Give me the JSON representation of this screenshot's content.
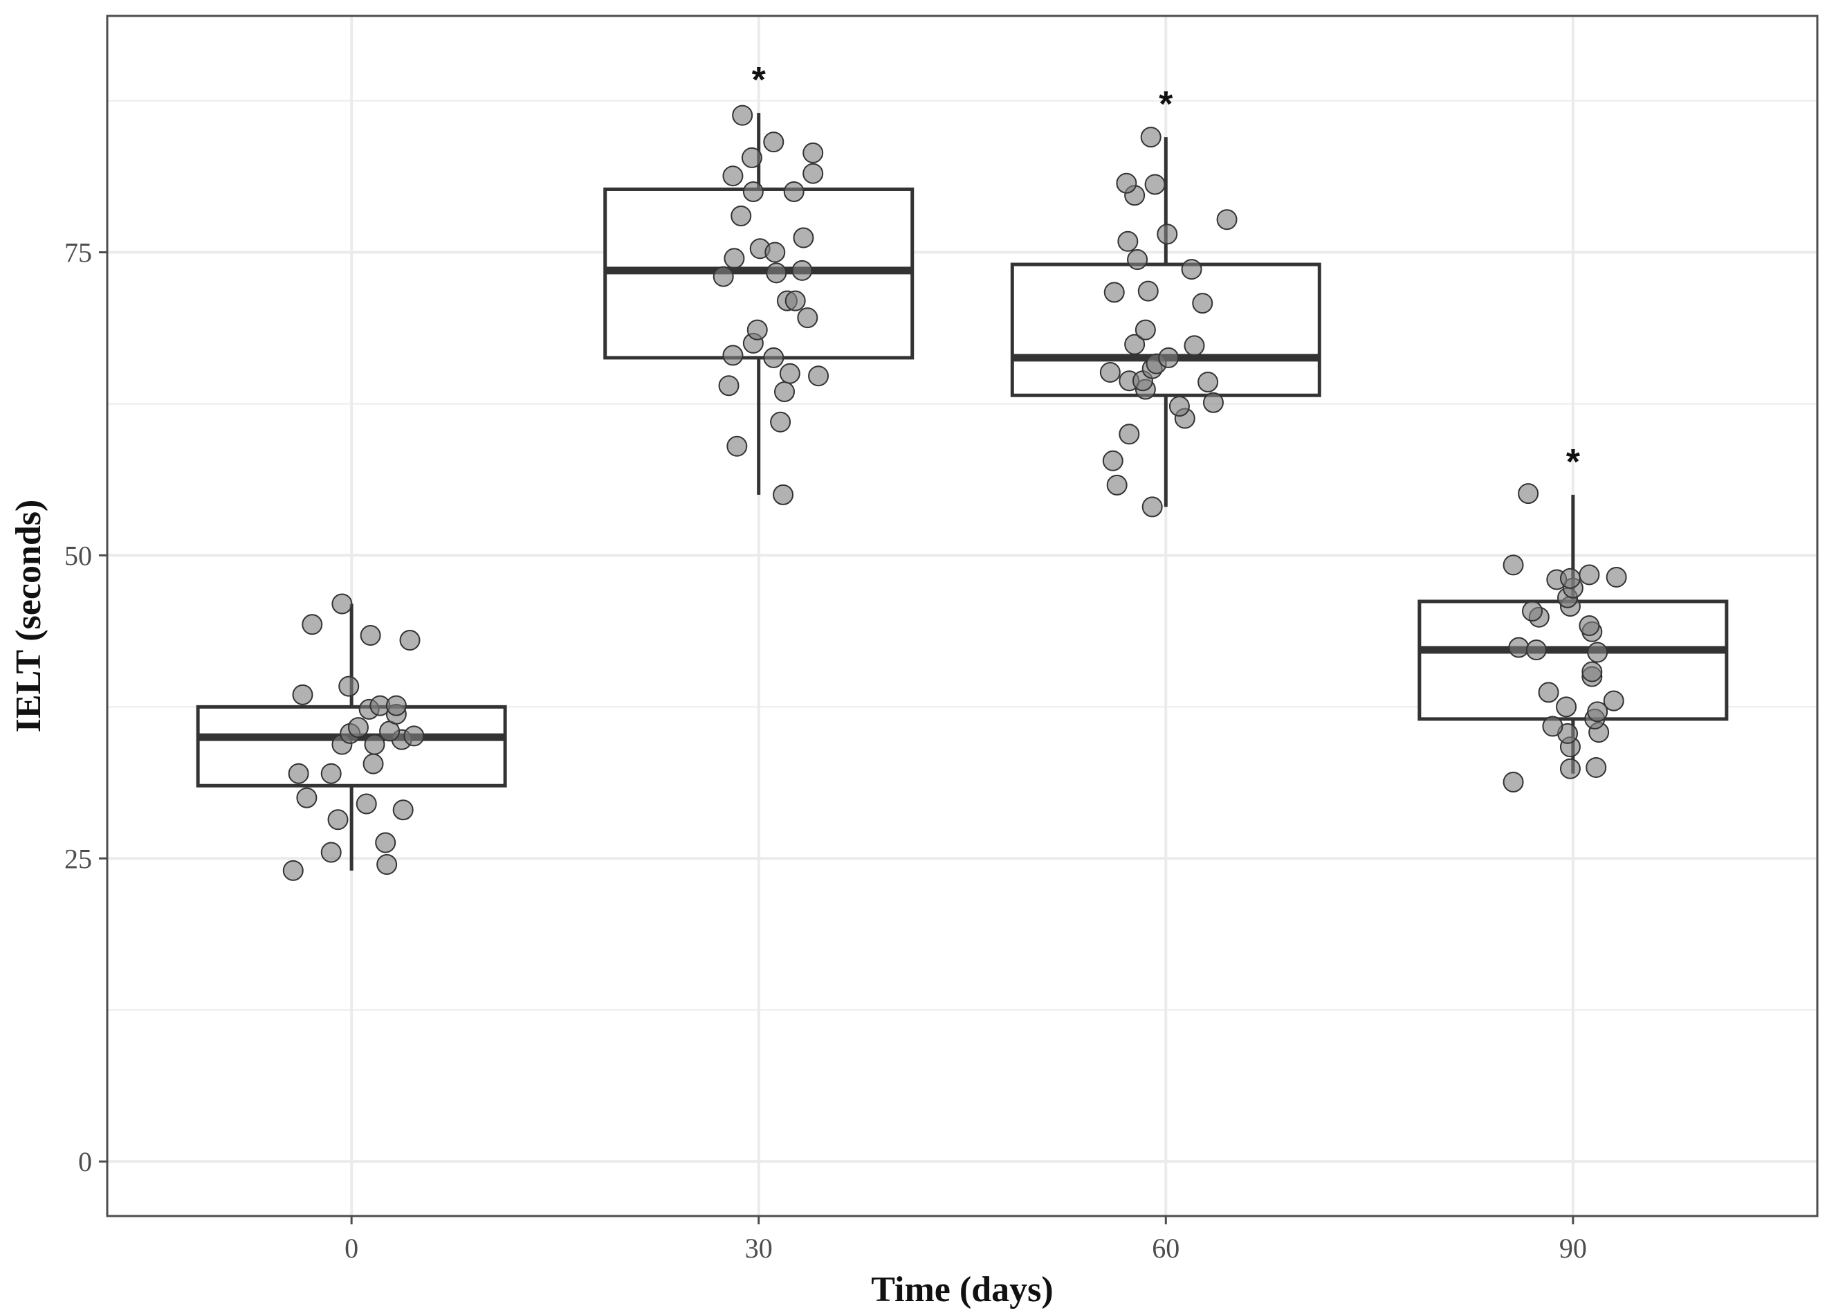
{
  "chart_data": {
    "type": "boxplot",
    "title": "",
    "xlabel": "Time (days)",
    "ylabel": "IELT (seconds)",
    "x_ticks": [
      "0",
      "30",
      "60",
      "90"
    ],
    "y_ticks": [
      "0",
      "25",
      "50",
      "75"
    ],
    "xlim": [
      -18,
      108
    ],
    "ylim": [
      -4.5,
      94.5
    ],
    "grid": true,
    "colors": {
      "background": "#ffffff",
      "panel_border": "#4d4d4d",
      "grid": "#ebebeb",
      "box_stroke": "#333333",
      "point_fill": "#7f7f7f",
      "point_stroke": "#333333"
    },
    "groups": [
      {
        "x": 0,
        "label": "0",
        "whisker_low": 24.0,
        "q1": 31.0,
        "median": 35.0,
        "q3": 37.5,
        "whisker_high": 46.0,
        "significance": "",
        "points": [
          {
            "x": -4.3,
            "y": 24.0
          },
          {
            "x": 2.6,
            "y": 24.5
          },
          {
            "x": -1.5,
            "y": 25.5
          },
          {
            "x": 2.5,
            "y": 26.3
          },
          {
            "x": -1.0,
            "y": 28.2
          },
          {
            "x": 3.8,
            "y": 29.0
          },
          {
            "x": 1.1,
            "y": 29.5
          },
          {
            "x": -3.3,
            "y": 30.0
          },
          {
            "x": -3.9,
            "y": 32.0
          },
          {
            "x": -1.5,
            "y": 32.0
          },
          {
            "x": 1.6,
            "y": 32.8
          },
          {
            "x": -0.7,
            "y": 34.4
          },
          {
            "x": 1.7,
            "y": 34.4
          },
          {
            "x": 3.7,
            "y": 34.8
          },
          {
            "x": 4.6,
            "y": 35.1
          },
          {
            "x": -0.1,
            "y": 35.3
          },
          {
            "x": 2.8,
            "y": 35.5
          },
          {
            "x": 0.5,
            "y": 35.8
          },
          {
            "x": 3.3,
            "y": 36.9
          },
          {
            "x": 1.3,
            "y": 37.3
          },
          {
            "x": 2.1,
            "y": 37.6
          },
          {
            "x": 3.3,
            "y": 37.6
          },
          {
            "x": -3.6,
            "y": 38.5
          },
          {
            "x": -0.2,
            "y": 39.2
          },
          {
            "x": 4.3,
            "y": 43.0
          },
          {
            "x": 1.4,
            "y": 43.4
          },
          {
            "x": -2.9,
            "y": 44.3
          },
          {
            "x": -0.7,
            "y": 46.0
          }
        ]
      },
      {
        "x": 30,
        "label": "30",
        "whisker_low": 55.0,
        "q1": 66.3,
        "median": 73.5,
        "q3": 80.2,
        "whisker_high": 86.5,
        "significance": "*",
        "points": [
          {
            "x": 31.8,
            "y": 55.0
          },
          {
            "x": 28.4,
            "y": 59.0
          },
          {
            "x": 31.6,
            "y": 61.0
          },
          {
            "x": 31.9,
            "y": 63.5
          },
          {
            "x": 27.8,
            "y": 64.0
          },
          {
            "x": 32.3,
            "y": 65.0
          },
          {
            "x": 34.4,
            "y": 64.8
          },
          {
            "x": 28.1,
            "y": 66.5
          },
          {
            "x": 31.1,
            "y": 66.3
          },
          {
            "x": 29.6,
            "y": 67.5
          },
          {
            "x": 29.9,
            "y": 68.6
          },
          {
            "x": 33.6,
            "y": 69.6
          },
          {
            "x": 32.1,
            "y": 71.0
          },
          {
            "x": 32.7,
            "y": 71.0
          },
          {
            "x": 27.4,
            "y": 73.0
          },
          {
            "x": 31.3,
            "y": 73.3
          },
          {
            "x": 33.2,
            "y": 73.5
          },
          {
            "x": 28.2,
            "y": 74.5
          },
          {
            "x": 30.1,
            "y": 75.3
          },
          {
            "x": 31.2,
            "y": 75.0
          },
          {
            "x": 33.3,
            "y": 76.2
          },
          {
            "x": 28.7,
            "y": 78.0
          },
          {
            "x": 29.6,
            "y": 80.0
          },
          {
            "x": 32.6,
            "y": 80.0
          },
          {
            "x": 28.1,
            "y": 81.3
          },
          {
            "x": 34.0,
            "y": 81.5
          },
          {
            "x": 29.5,
            "y": 82.8
          },
          {
            "x": 34.0,
            "y": 83.2
          },
          {
            "x": 31.1,
            "y": 84.1
          },
          {
            "x": 28.8,
            "y": 86.3
          }
        ]
      },
      {
        "x": 60,
        "label": "60",
        "whisker_low": 54.0,
        "q1": 63.2,
        "median": 66.3,
        "q3": 74.0,
        "whisker_high": 84.5,
        "significance": "*",
        "points": [
          {
            "x": 59.0,
            "y": 54.0
          },
          {
            "x": 56.4,
            "y": 55.8
          },
          {
            "x": 56.1,
            "y": 57.8
          },
          {
            "x": 57.3,
            "y": 60.0
          },
          {
            "x": 61.4,
            "y": 61.3
          },
          {
            "x": 61.0,
            "y": 62.3
          },
          {
            "x": 63.5,
            "y": 62.6
          },
          {
            "x": 58.5,
            "y": 63.7
          },
          {
            "x": 63.1,
            "y": 64.3
          },
          {
            "x": 57.3,
            "y": 64.4
          },
          {
            "x": 58.3,
            "y": 64.4
          },
          {
            "x": 55.9,
            "y": 65.1
          },
          {
            "x": 59.0,
            "y": 65.4
          },
          {
            "x": 59.3,
            "y": 65.8
          },
          {
            "x": 60.2,
            "y": 66.3
          },
          {
            "x": 62.1,
            "y": 67.3
          },
          {
            "x": 57.7,
            "y": 67.4
          },
          {
            "x": 58.5,
            "y": 68.6
          },
          {
            "x": 62.7,
            "y": 70.8
          },
          {
            "x": 56.2,
            "y": 71.7
          },
          {
            "x": 58.7,
            "y": 71.8
          },
          {
            "x": 61.9,
            "y": 73.6
          },
          {
            "x": 57.9,
            "y": 74.4
          },
          {
            "x": 57.2,
            "y": 75.9
          },
          {
            "x": 60.1,
            "y": 76.5
          },
          {
            "x": 64.5,
            "y": 77.7
          },
          {
            "x": 57.7,
            "y": 79.7
          },
          {
            "x": 57.1,
            "y": 80.7
          },
          {
            "x": 59.2,
            "y": 80.6
          },
          {
            "x": 58.9,
            "y": 84.5
          }
        ]
      },
      {
        "x": 90,
        "label": "90",
        "whisker_low": 32.0,
        "q1": 36.5,
        "median": 42.2,
        "q3": 46.2,
        "whisker_high": 55.0,
        "significance": "*",
        "points": [
          {
            "x": 85.6,
            "y": 31.3
          },
          {
            "x": 89.8,
            "y": 32.4
          },
          {
            "x": 91.7,
            "y": 32.5
          },
          {
            "x": 89.8,
            "y": 34.2
          },
          {
            "x": 89.6,
            "y": 35.3
          },
          {
            "x": 91.9,
            "y": 35.4
          },
          {
            "x": 88.5,
            "y": 35.9
          },
          {
            "x": 91.6,
            "y": 36.5
          },
          {
            "x": 91.8,
            "y": 37.1
          },
          {
            "x": 89.5,
            "y": 37.5
          },
          {
            "x": 93.0,
            "y": 38.0
          },
          {
            "x": 88.2,
            "y": 38.7
          },
          {
            "x": 91.4,
            "y": 40.0
          },
          {
            "x": 91.4,
            "y": 40.4
          },
          {
            "x": 91.8,
            "y": 42.0
          },
          {
            "x": 86.0,
            "y": 42.4
          },
          {
            "x": 87.3,
            "y": 42.2
          },
          {
            "x": 91.4,
            "y": 43.7
          },
          {
            "x": 91.2,
            "y": 44.2
          },
          {
            "x": 87.5,
            "y": 44.9
          },
          {
            "x": 87.0,
            "y": 45.4
          },
          {
            "x": 89.8,
            "y": 45.8
          },
          {
            "x": 89.6,
            "y": 46.5
          },
          {
            "x": 90.0,
            "y": 47.3
          },
          {
            "x": 88.8,
            "y": 48.0
          },
          {
            "x": 89.8,
            "y": 48.1
          },
          {
            "x": 93.2,
            "y": 48.2
          },
          {
            "x": 91.2,
            "y": 48.4
          },
          {
            "x": 85.6,
            "y": 49.2
          },
          {
            "x": 86.7,
            "y": 55.1
          }
        ]
      }
    ]
  }
}
